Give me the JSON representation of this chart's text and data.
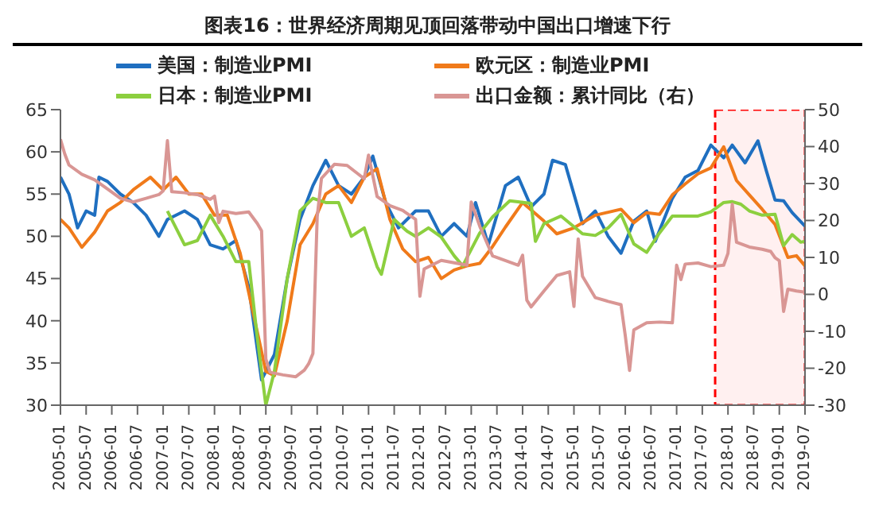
{
  "chart_data": {
    "type": "line",
    "title": "图表16：世界经济周期见顶回落带动中国出口增速下行",
    "xlim": [
      "2005-01",
      "2019-07"
    ],
    "xticks": [
      "2005-01",
      "2005-07",
      "2006-01",
      "2006-07",
      "2007-01",
      "2007-07",
      "2008-01",
      "2008-07",
      "2009-01",
      "2009-07",
      "2010-01",
      "2010-07",
      "2011-01",
      "2011-07",
      "2012-01",
      "2012-07",
      "2013-01",
      "2013-07",
      "2014-01",
      "2014-07",
      "2015-01",
      "2015-07",
      "2016-01",
      "2016-07",
      "2017-01",
      "2017-07",
      "2018-01",
      "2018-07",
      "2019-01",
      "2019-07"
    ],
    "ylim": [
      30,
      65
    ],
    "yticks": [
      30,
      35,
      40,
      45,
      50,
      55,
      60,
      65
    ],
    "y2lim": [
      -30,
      50
    ],
    "y2ticks": [
      -30,
      -20,
      -10,
      0,
      10,
      20,
      30,
      40,
      50
    ],
    "grid": false,
    "legend": "top",
    "marker": "none",
    "line_style": "solid",
    "bands": [
      {
        "axis": "x",
        "from": "2017-10",
        "to": "2019-07",
        "color": "#ff0000"
      }
    ],
    "series": [
      {
        "name": "美国：制造业PMI",
        "color": "#1f6fc0",
        "x": [
          "2005-01",
          "2005-03",
          "2005-05",
          "2005-07",
          "2005-09",
          "2005-10",
          "2005-12",
          "2006-03",
          "2006-06",
          "2006-09",
          "2006-12",
          "2007-02",
          "2007-06",
          "2007-09",
          "2007-12",
          "2008-03",
          "2008-06",
          "2008-09",
          "2008-12",
          "2009-03",
          "2009-06",
          "2009-09",
          "2009-12",
          "2010-03",
          "2010-06",
          "2010-09",
          "2010-12",
          "2011-02",
          "2011-05",
          "2011-08",
          "2011-12",
          "2012-03",
          "2012-06",
          "2012-09",
          "2012-12",
          "2013-02",
          "2013-05",
          "2013-09",
          "2013-12",
          "2014-03",
          "2014-06",
          "2014-08",
          "2014-11",
          "2015-03",
          "2015-06",
          "2015-09",
          "2015-12",
          "2016-03",
          "2016-06",
          "2016-08",
          "2016-12",
          "2017-03",
          "2017-06",
          "2017-09",
          "2017-12",
          "2018-02",
          "2018-05",
          "2018-08",
          "2018-10",
          "2018-12",
          "2019-02",
          "2019-04",
          "2019-07"
        ],
        "values": [
          57,
          55,
          51,
          53,
          52.5,
          57,
          56.5,
          55,
          54,
          52.5,
          50,
          52,
          53,
          52,
          49,
          48.5,
          49.5,
          44,
          33,
          36,
          45,
          52,
          56,
          59,
          56,
          55,
          57,
          59.5,
          54,
          51,
          53,
          53,
          50,
          51.5,
          50,
          54,
          49,
          56,
          57,
          53.5,
          55,
          59,
          58.5,
          51.5,
          53,
          50,
          48,
          51.8,
          53,
          49.4,
          54.5,
          57,
          57.8,
          60.8,
          59.3,
          60.8,
          58.7,
          61.3,
          57.7,
          54.3,
          54.2,
          52.8,
          51.2
        ]
      },
      {
        "name": "欧元区：制造业PMI",
        "color": "#f07a1a",
        "x": [
          "2005-01",
          "2005-03",
          "2005-06",
          "2005-09",
          "2005-12",
          "2006-03",
          "2006-06",
          "2006-10",
          "2007-01",
          "2007-04",
          "2007-07",
          "2007-10",
          "2008-01",
          "2008-04",
          "2008-07",
          "2008-10",
          "2009-01",
          "2009-03",
          "2009-06",
          "2009-09",
          "2009-12",
          "2010-03",
          "2010-06",
          "2010-09",
          "2010-12",
          "2011-03",
          "2011-06",
          "2011-09",
          "2011-12",
          "2012-03",
          "2012-06",
          "2012-09",
          "2012-12",
          "2013-03",
          "2013-06",
          "2013-09",
          "2014-01",
          "2014-06",
          "2014-09",
          "2015-01",
          "2015-06",
          "2015-12",
          "2016-03",
          "2016-06",
          "2016-09",
          "2016-12",
          "2017-03",
          "2017-06",
          "2017-09",
          "2017-12",
          "2018-03",
          "2018-06",
          "2018-09",
          "2018-12",
          "2019-03",
          "2019-05",
          "2019-07"
        ],
        "values": [
          52,
          51,
          48.7,
          50.5,
          53,
          54,
          55.5,
          57,
          55.5,
          57,
          55,
          55,
          52.5,
          52.5,
          48,
          41,
          34,
          33.5,
          40,
          49,
          51.5,
          55,
          56,
          54,
          57,
          58,
          52,
          48.5,
          47,
          47.5,
          45,
          46,
          46.5,
          46.8,
          48.8,
          51.1,
          54,
          51.8,
          50.3,
          51,
          52.5,
          53.2,
          51.6,
          52.8,
          52.6,
          54.9,
          56.2,
          57.4,
          58.1,
          60.6,
          56.6,
          54.9,
          53.2,
          51.4,
          47.5,
          47.7,
          46.5
        ]
      },
      {
        "name": "日本：制造业PMI",
        "color": "#8ccf3f",
        "x": [
          "2007-02",
          "2007-06",
          "2007-09",
          "2007-12",
          "2008-03",
          "2008-06",
          "2008-09",
          "2008-11",
          "2009-01",
          "2009-03",
          "2009-06",
          "2009-09",
          "2009-12",
          "2010-03",
          "2010-06",
          "2010-09",
          "2010-12",
          "2011-03",
          "2011-04",
          "2011-07",
          "2011-10",
          "2011-12",
          "2012-03",
          "2012-06",
          "2012-09",
          "2012-11",
          "2013-03",
          "2013-06",
          "2013-10",
          "2014-03",
          "2014-04",
          "2014-06",
          "2014-10",
          "2015-03",
          "2015-06",
          "2015-09",
          "2015-12",
          "2016-03",
          "2016-06",
          "2016-09",
          "2016-12",
          "2017-03",
          "2017-06",
          "2017-09",
          "2017-12",
          "2018-02",
          "2018-04",
          "2018-06",
          "2018-09",
          "2018-12",
          "2019-02",
          "2019-04",
          "2019-06",
          "2019-07"
        ],
        "values": [
          53,
          49,
          49.5,
          52.5,
          50,
          47,
          47,
          38,
          30,
          34,
          45,
          53,
          54.5,
          54,
          54,
          50,
          51,
          46.4,
          45.5,
          52,
          50.6,
          50,
          51,
          49.9,
          47.7,
          46.5,
          50.4,
          52.3,
          54.2,
          53.9,
          49.4,
          51.5,
          52.4,
          50.3,
          50.1,
          51,
          52.6,
          49.1,
          48.1,
          50.4,
          52.4,
          52.4,
          52.4,
          52.9,
          54,
          54.1,
          53.8,
          53,
          52.5,
          52.6,
          48.9,
          50.2,
          49.3,
          49.4
        ]
      },
      {
        "name": "出口金额：累计同比（右）",
        "color": "#d99694",
        "axis": "y2",
        "x": [
          "2005-01",
          "2005-02",
          "2005-03",
          "2005-06",
          "2005-09",
          "2005-12",
          "2006-03",
          "2006-06",
          "2006-09",
          "2006-12",
          "2007-01",
          "2007-02",
          "2007-03",
          "2007-06",
          "2007-09",
          "2007-12",
          "2008-01",
          "2008-02",
          "2008-03",
          "2008-06",
          "2008-09",
          "2008-11",
          "2008-12",
          "2009-01",
          "2009-02",
          "2009-05",
          "2009-08",
          "2009-10",
          "2009-11",
          "2009-12",
          "2010-01",
          "2010-02",
          "2010-05",
          "2010-08",
          "2010-12",
          "2011-01",
          "2011-03",
          "2011-06",
          "2011-09",
          "2011-12",
          "2012-01",
          "2012-02",
          "2012-06",
          "2012-12",
          "2013-01",
          "2013-03",
          "2013-06",
          "2013-12",
          "2014-01",
          "2014-02",
          "2014-03",
          "2014-06",
          "2014-09",
          "2014-12",
          "2015-01",
          "2015-02",
          "2015-03",
          "2015-06",
          "2015-09",
          "2015-12",
          "2016-01",
          "2016-02",
          "2016-03",
          "2016-06",
          "2016-09",
          "2016-12",
          "2017-01",
          "2017-02",
          "2017-03",
          "2017-06",
          "2017-09",
          "2017-12",
          "2018-01",
          "2018-02",
          "2018-03",
          "2018-06",
          "2018-09",
          "2018-11",
          "2018-12",
          "2019-01",
          "2019-02",
          "2019-03",
          "2019-05",
          "2019-07"
        ],
        "values": [
          42,
          38,
          35,
          32.5,
          31,
          28.5,
          26,
          25,
          26,
          27,
          28,
          41.6,
          27.8,
          27.5,
          27,
          25.7,
          26.6,
          19.4,
          22.5,
          21.9,
          22.3,
          19.2,
          17.2,
          -17.5,
          -21.1,
          -21.8,
          -22.3,
          -20.5,
          -18.8,
          -16,
          21,
          31.4,
          35.2,
          34.9,
          31.3,
          37.7,
          26.5,
          24,
          22.7,
          20.3,
          -0.5,
          6.9,
          9.2,
          7.9,
          25,
          18.4,
          10.4,
          7.9,
          10.6,
          -1.6,
          -3.4,
          0.9,
          5.1,
          6.1,
          -3.3,
          15,
          4.9,
          -0.9,
          -1.9,
          -2.8,
          -11.2,
          -20.6,
          -9.6,
          -7.7,
          -7.5,
          -7.7,
          7.9,
          4,
          8.2,
          8.5,
          7.5,
          7.9,
          11.1,
          24.4,
          14.1,
          12.8,
          12.2,
          11.6,
          9.9,
          9.1,
          -4.6,
          1.4,
          0.9,
          0.6
        ]
      }
    ]
  }
}
